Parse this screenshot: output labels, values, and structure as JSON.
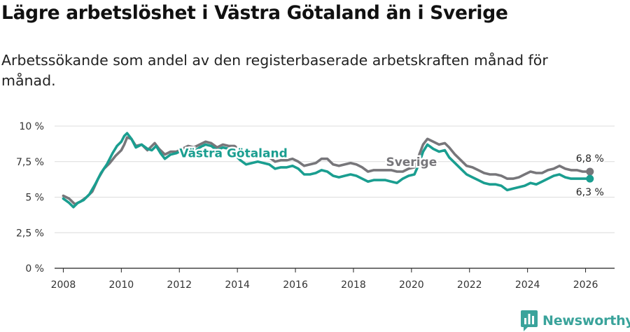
{
  "header": {
    "title": "Lägre arbetslöshet i Västra Götaland än i Sverige",
    "subtitle": "Arbetssökande som andel av den registerbaserade arbetskraften månad för månad."
  },
  "brand": {
    "name": "Newsworthy",
    "icon": "newsworthy-logo-icon",
    "color": "#3aa39b"
  },
  "chart_data": {
    "type": "line",
    "title": "Lägre arbetslöshet i Västra Götaland än i Sverige",
    "xlabel": "",
    "ylabel": "",
    "xlim": [
      2007.7,
      2027.0
    ],
    "ylim": [
      0,
      10
    ],
    "grid": true,
    "y_ticks": [
      {
        "value": 0,
        "label": "0 %"
      },
      {
        "value": 2.5,
        "label": "2,5 %"
      },
      {
        "value": 5,
        "label": "5 %"
      },
      {
        "value": 7.5,
        "label": "7,5 %"
      },
      {
        "value": 10,
        "label": "10 %"
      }
    ],
    "x_ticks": [
      {
        "value": 2008,
        "label": "2008"
      },
      {
        "value": 2010,
        "label": "2010"
      },
      {
        "value": 2012,
        "label": "2012"
      },
      {
        "value": 2014,
        "label": "2014"
      },
      {
        "value": 2016,
        "label": "2016"
      },
      {
        "value": 2018,
        "label": "2018"
      },
      {
        "value": 2020,
        "label": "2020"
      },
      {
        "value": 2022,
        "label": "2022"
      },
      {
        "value": 2024,
        "label": "2024"
      },
      {
        "value": 2026,
        "label": "2026"
      }
    ],
    "series": [
      {
        "name": "Sverige",
        "color": "#77767a",
        "label_x": 2020.0,
        "label_y": 7.5,
        "end_label": "6,8 %",
        "points": [
          [
            2008.0,
            5.1
          ],
          [
            2008.2,
            4.9
          ],
          [
            2008.4,
            4.5
          ],
          [
            2008.6,
            4.7
          ],
          [
            2008.8,
            5.0
          ],
          [
            2009.0,
            5.4
          ],
          [
            2009.2,
            6.3
          ],
          [
            2009.4,
            7.0
          ],
          [
            2009.6,
            7.4
          ],
          [
            2009.8,
            7.9
          ],
          [
            2010.0,
            8.3
          ],
          [
            2010.1,
            8.7
          ],
          [
            2010.2,
            9.2
          ],
          [
            2010.35,
            9.1
          ],
          [
            2010.5,
            8.6
          ],
          [
            2010.7,
            8.7
          ],
          [
            2010.9,
            8.3
          ],
          [
            2011.0,
            8.5
          ],
          [
            2011.15,
            8.8
          ],
          [
            2011.3,
            8.4
          ],
          [
            2011.5,
            8.0
          ],
          [
            2011.7,
            8.2
          ],
          [
            2011.9,
            8.2
          ],
          [
            2012.1,
            8.4
          ],
          [
            2012.3,
            8.6
          ],
          [
            2012.5,
            8.5
          ],
          [
            2012.7,
            8.7
          ],
          [
            2012.9,
            8.9
          ],
          [
            2013.1,
            8.8
          ],
          [
            2013.3,
            8.5
          ],
          [
            2013.5,
            8.7
          ],
          [
            2013.7,
            8.6
          ],
          [
            2013.9,
            8.6
          ],
          [
            2014.1,
            8.3
          ],
          [
            2014.3,
            8.0
          ],
          [
            2014.5,
            7.9
          ],
          [
            2014.7,
            8.1
          ],
          [
            2014.9,
            8.1
          ],
          [
            2015.1,
            7.8
          ],
          [
            2015.3,
            7.5
          ],
          [
            2015.5,
            7.6
          ],
          [
            2015.7,
            7.6
          ],
          [
            2015.9,
            7.7
          ],
          [
            2016.1,
            7.5
          ],
          [
            2016.3,
            7.2
          ],
          [
            2016.5,
            7.3
          ],
          [
            2016.7,
            7.4
          ],
          [
            2016.9,
            7.7
          ],
          [
            2017.1,
            7.7
          ],
          [
            2017.3,
            7.3
          ],
          [
            2017.5,
            7.2
          ],
          [
            2017.7,
            7.3
          ],
          [
            2017.9,
            7.4
          ],
          [
            2018.1,
            7.3
          ],
          [
            2018.3,
            7.1
          ],
          [
            2018.5,
            6.8
          ],
          [
            2018.7,
            6.9
          ],
          [
            2018.9,
            6.9
          ],
          [
            2019.1,
            6.9
          ],
          [
            2019.3,
            6.9
          ],
          [
            2019.5,
            6.8
          ],
          [
            2019.7,
            6.8
          ],
          [
            2019.9,
            7.0
          ],
          [
            2020.1,
            7.1
          ],
          [
            2020.25,
            7.9
          ],
          [
            2020.4,
            8.7
          ],
          [
            2020.55,
            9.1
          ],
          [
            2020.75,
            8.9
          ],
          [
            2020.95,
            8.7
          ],
          [
            2021.15,
            8.8
          ],
          [
            2021.3,
            8.5
          ],
          [
            2021.5,
            8.0
          ],
          [
            2021.7,
            7.6
          ],
          [
            2021.9,
            7.2
          ],
          [
            2022.1,
            7.1
          ],
          [
            2022.3,
            6.9
          ],
          [
            2022.5,
            6.7
          ],
          [
            2022.7,
            6.6
          ],
          [
            2022.9,
            6.6
          ],
          [
            2023.1,
            6.5
          ],
          [
            2023.3,
            6.3
          ],
          [
            2023.5,
            6.3
          ],
          [
            2023.7,
            6.4
          ],
          [
            2023.9,
            6.6
          ],
          [
            2024.1,
            6.8
          ],
          [
            2024.3,
            6.7
          ],
          [
            2024.5,
            6.7
          ],
          [
            2024.7,
            6.9
          ],
          [
            2024.9,
            7.0
          ],
          [
            2025.1,
            7.2
          ],
          [
            2025.3,
            7.0
          ],
          [
            2025.5,
            6.9
          ],
          [
            2025.7,
            6.9
          ],
          [
            2025.9,
            6.8
          ],
          [
            2026.15,
            6.8
          ]
        ]
      },
      {
        "name": "Västra Götaland",
        "color": "#1a9e90",
        "label_x": 2012.0,
        "label_y": 8.1,
        "end_label": "6,3 %",
        "points": [
          [
            2008.0,
            4.9
          ],
          [
            2008.2,
            4.6
          ],
          [
            2008.35,
            4.3
          ],
          [
            2008.5,
            4.6
          ],
          [
            2008.7,
            4.8
          ],
          [
            2008.9,
            5.2
          ],
          [
            2009.1,
            5.9
          ],
          [
            2009.3,
            6.7
          ],
          [
            2009.5,
            7.3
          ],
          [
            2009.7,
            8.1
          ],
          [
            2009.85,
            8.6
          ],
          [
            2010.0,
            8.9
          ],
          [
            2010.1,
            9.3
          ],
          [
            2010.2,
            9.5
          ],
          [
            2010.35,
            9.1
          ],
          [
            2010.5,
            8.5
          ],
          [
            2010.7,
            8.7
          ],
          [
            2010.9,
            8.4
          ],
          [
            2011.05,
            8.3
          ],
          [
            2011.2,
            8.6
          ],
          [
            2011.35,
            8.1
          ],
          [
            2011.5,
            7.7
          ],
          [
            2011.7,
            8.0
          ],
          [
            2011.9,
            8.1
          ],
          [
            2012.1,
            8.3
          ],
          [
            2012.3,
            8.3
          ],
          [
            2012.5,
            8.2
          ],
          [
            2012.7,
            8.5
          ],
          [
            2012.9,
            8.7
          ],
          [
            2013.1,
            8.6
          ],
          [
            2013.3,
            8.3
          ],
          [
            2013.5,
            8.5
          ],
          [
            2013.7,
            8.4
          ],
          [
            2013.9,
            8.0
          ],
          [
            2014.1,
            7.6
          ],
          [
            2014.3,
            7.3
          ],
          [
            2014.5,
            7.4
          ],
          [
            2014.7,
            7.5
          ],
          [
            2014.9,
            7.4
          ],
          [
            2015.1,
            7.3
          ],
          [
            2015.3,
            7.0
          ],
          [
            2015.5,
            7.1
          ],
          [
            2015.7,
            7.1
          ],
          [
            2015.9,
            7.2
          ],
          [
            2016.1,
            7.0
          ],
          [
            2016.3,
            6.6
          ],
          [
            2016.5,
            6.6
          ],
          [
            2016.7,
            6.7
          ],
          [
            2016.9,
            6.9
          ],
          [
            2017.1,
            6.8
          ],
          [
            2017.3,
            6.5
          ],
          [
            2017.5,
            6.4
          ],
          [
            2017.7,
            6.5
          ],
          [
            2017.9,
            6.6
          ],
          [
            2018.1,
            6.5
          ],
          [
            2018.3,
            6.3
          ],
          [
            2018.5,
            6.1
          ],
          [
            2018.7,
            6.2
          ],
          [
            2018.9,
            6.2
          ],
          [
            2019.1,
            6.2
          ],
          [
            2019.3,
            6.1
          ],
          [
            2019.5,
            6.0
          ],
          [
            2019.7,
            6.3
          ],
          [
            2019.9,
            6.5
          ],
          [
            2020.1,
            6.6
          ],
          [
            2020.25,
            7.3
          ],
          [
            2020.4,
            8.2
          ],
          [
            2020.55,
            8.7
          ],
          [
            2020.75,
            8.4
          ],
          [
            2020.95,
            8.2
          ],
          [
            2021.15,
            8.3
          ],
          [
            2021.3,
            7.8
          ],
          [
            2021.5,
            7.4
          ],
          [
            2021.7,
            7.0
          ],
          [
            2021.9,
            6.6
          ],
          [
            2022.1,
            6.4
          ],
          [
            2022.3,
            6.2
          ],
          [
            2022.5,
            6.0
          ],
          [
            2022.7,
            5.9
          ],
          [
            2022.9,
            5.9
          ],
          [
            2023.1,
            5.8
          ],
          [
            2023.3,
            5.5
          ],
          [
            2023.5,
            5.6
          ],
          [
            2023.7,
            5.7
          ],
          [
            2023.9,
            5.8
          ],
          [
            2024.1,
            6.0
          ],
          [
            2024.3,
            5.9
          ],
          [
            2024.5,
            6.1
          ],
          [
            2024.7,
            6.3
          ],
          [
            2024.9,
            6.5
          ],
          [
            2025.1,
            6.6
          ],
          [
            2025.3,
            6.4
          ],
          [
            2025.5,
            6.3
          ],
          [
            2025.7,
            6.3
          ],
          [
            2025.9,
            6.3
          ],
          [
            2026.15,
            6.3
          ]
        ]
      }
    ]
  }
}
